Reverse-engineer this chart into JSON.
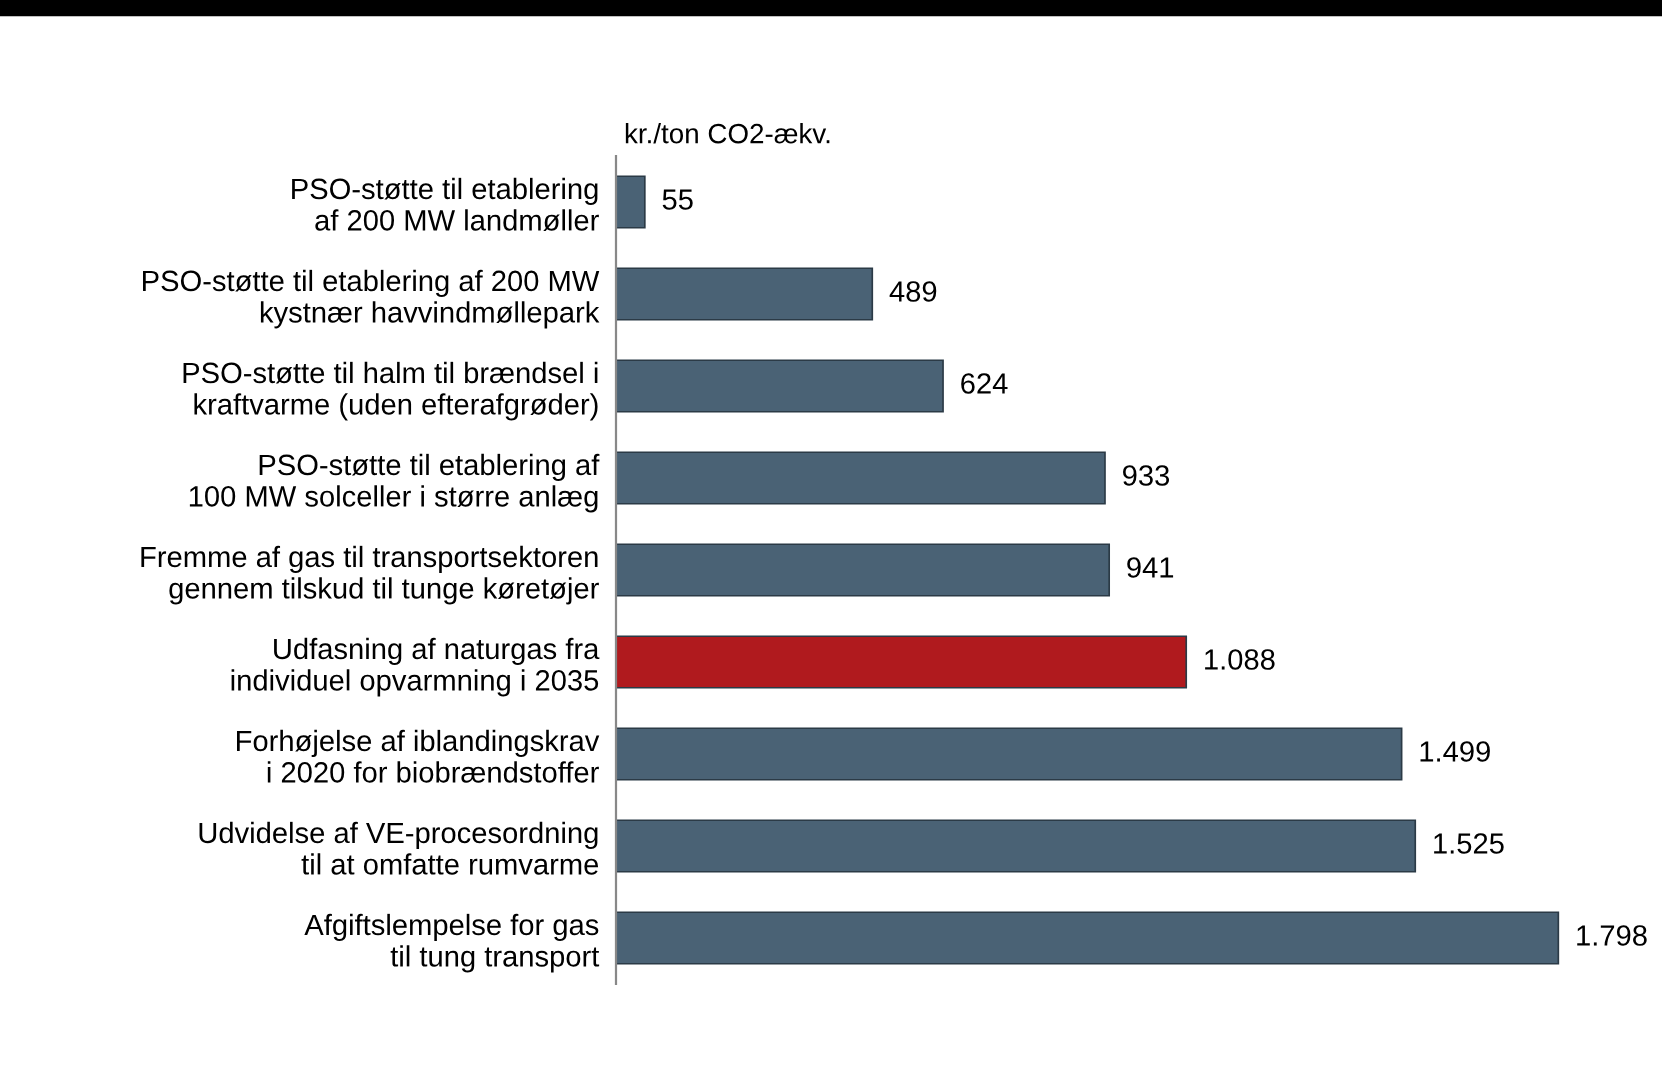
{
  "chart_data": {
    "type": "bar",
    "orientation": "horizontal",
    "xlabel": "kr./ton CO2-ækv.",
    "categories": [
      "PSO-støtte til etablering\naf 200 MW landmøller",
      "PSO-støtte til etablering af 200 MW\nkystnær havvindmøllepark",
      "PSO-støtte til halm til brændsel i\nkraftvarme (uden efterafgrøder)",
      "PSO-støtte til etablering af\n100 MW solceller i større anlæg",
      "Fremme af gas til transportsektoren\ngennem tilskud til tunge køretøjer",
      "Udfasning af naturgas fra\nindividuel opvarmning i 2035",
      "Forhøjelse af iblandingskrav\ni 2020 for biobrændstoffer",
      "Udvidelse af VE-procesordning\ntil at omfatte rumvarme",
      "Afgiftslempelse for gas\ntil tung transport"
    ],
    "values": [
      55,
      489,
      624,
      933,
      941,
      1088,
      1499,
      1525,
      1798
    ],
    "value_labels": [
      "55",
      "489",
      "624",
      "933",
      "941",
      "1.088",
      "1.499",
      "1.525",
      "1.798"
    ],
    "colors": [
      "#4a6275",
      "#4a6275",
      "#4a6275",
      "#4a6275",
      "#4a6275",
      "#b01a1e",
      "#4a6275",
      "#4a6275",
      "#4a6275"
    ],
    "grid": false,
    "legend": false
  }
}
